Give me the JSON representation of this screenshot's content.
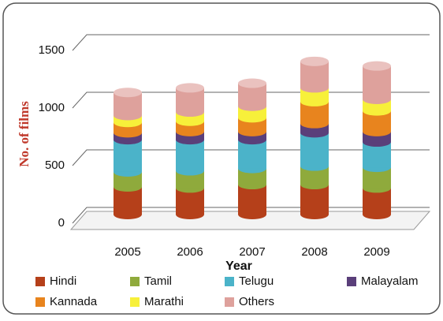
{
  "chart_data": {
    "type": "bar",
    "stacked": true,
    "y_label": "No. of films",
    "x_label": "Year",
    "categories": [
      "2005",
      "2006",
      "2007",
      "2008",
      "2009"
    ],
    "series": [
      {
        "name": "Hindi",
        "color": "#b5401a",
        "values": [
          240,
          230,
          260,
          260,
          230
        ]
      },
      {
        "name": "Tamil",
        "color": "#8faa3c",
        "values": [
          130,
          150,
          140,
          160,
          180
        ]
      },
      {
        "name": "Telugu",
        "color": "#4bb3c9",
        "values": [
          280,
          270,
          250,
          290,
          220
        ]
      },
      {
        "name": "Malayalam",
        "color": "#5a3f7a",
        "values": [
          60,
          70,
          70,
          80,
          90
        ]
      },
      {
        "name": "Kannada",
        "color": "#e8841e",
        "values": [
          90,
          90,
          120,
          190,
          180
        ]
      },
      {
        "name": "Marathi",
        "color": "#f7f03a",
        "values": [
          60,
          80,
          100,
          120,
          100
        ]
      },
      {
        "name": "Others",
        "color": "#dea19c",
        "values": [
          200,
          210,
          200,
          230,
          290
        ]
      }
    ],
    "ylim": [
      0,
      1500
    ],
    "yticks": [
      0,
      500,
      1000,
      1500
    ],
    "grid": true,
    "legend": "bottom"
  }
}
